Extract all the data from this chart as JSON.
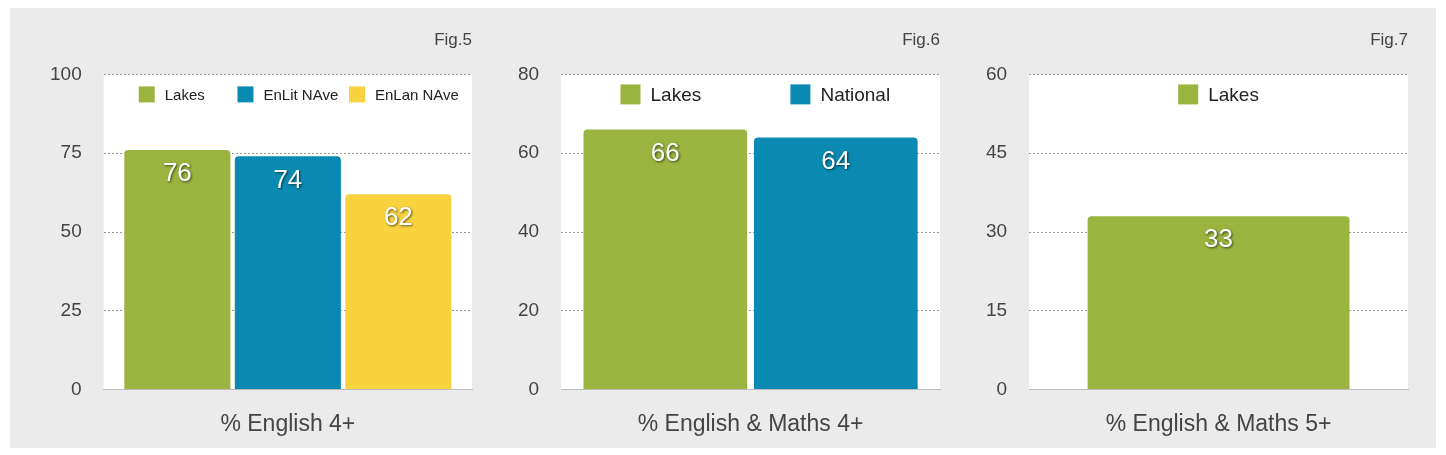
{
  "chart_data": [
    {
      "type": "bar",
      "title": "Fig.5",
      "xlabel": "% English 4+",
      "categories": [
        null
      ],
      "ylim": [
        0,
        100
      ],
      "yticks": [
        0,
        25,
        50,
        75,
        100
      ],
      "grid": "y",
      "legend": "top",
      "data_labels": true,
      "series": [
        {
          "name": "Lakes",
          "color": "#9bb33f",
          "values": [
            76
          ]
        },
        {
          "name": "EnLit NAve",
          "color": "#0a8ab2",
          "values": [
            74
          ]
        },
        {
          "name": "EnLan NAve",
          "color": "#f8d33f",
          "values": [
            62
          ]
        }
      ]
    },
    {
      "type": "bar",
      "title": "Fig.6",
      "xlabel": "% English & Maths 4+",
      "categories": [
        null
      ],
      "ylim": [
        0,
        80
      ],
      "yticks": [
        0,
        20,
        40,
        60,
        80
      ],
      "grid": "y",
      "legend": "top",
      "data_labels": true,
      "series": [
        {
          "name": "Lakes",
          "color": "#9bb33f",
          "values": [
            66
          ]
        },
        {
          "name": "National",
          "color": "#0a8ab2",
          "values": [
            64
          ]
        }
      ]
    },
    {
      "type": "bar",
      "title": "Fig.7",
      "xlabel": "% English & Maths 5+",
      "categories": [
        null
      ],
      "ylim": [
        0,
        60
      ],
      "yticks": [
        0,
        15,
        30,
        45,
        60
      ],
      "grid": "y",
      "legend": "top",
      "data_labels": true,
      "series": [
        {
          "name": "Lakes",
          "color": "#9bb33f",
          "values": [
            33
          ]
        }
      ]
    }
  ]
}
